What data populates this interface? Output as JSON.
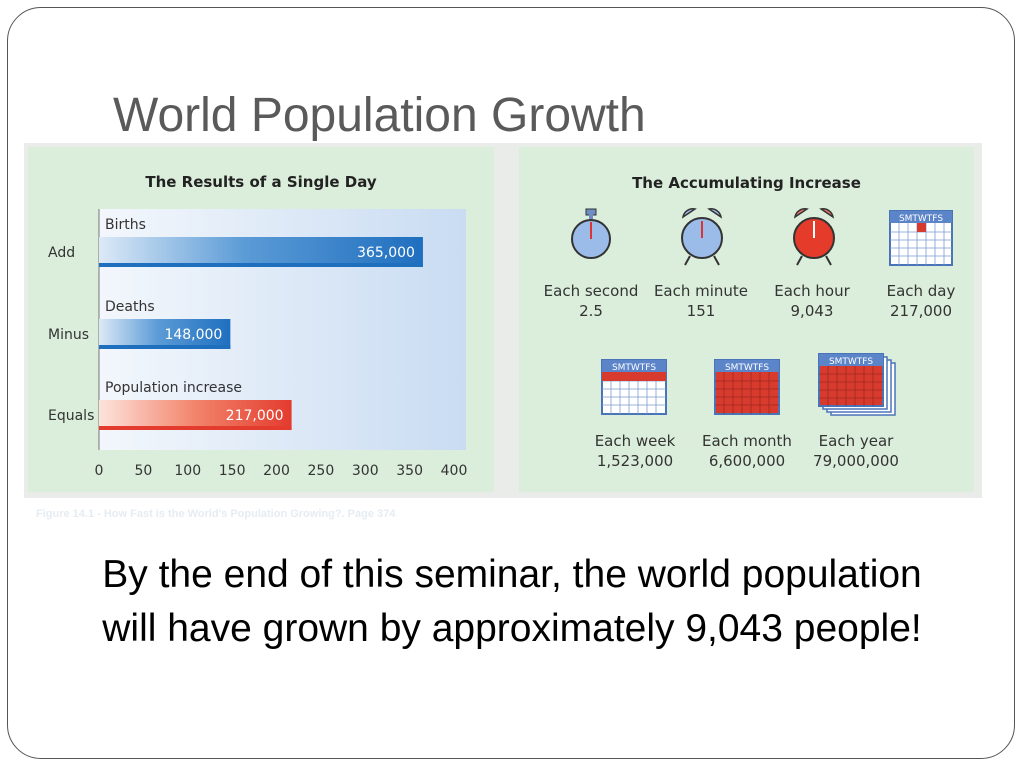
{
  "slide": {
    "title": "World Population Growth"
  },
  "left_chart": {
    "title": "The Results of a Single Day"
  },
  "right_chart": {
    "title": "The Accumulating Increase",
    "rates": [
      {
        "label": "Each second",
        "value": "2.5"
      },
      {
        "label": "Each minute",
        "value": "151"
      },
      {
        "label": "Each hour",
        "value": "9,043"
      },
      {
        "label": "Each day",
        "value": "217,000"
      },
      {
        "label": "Each week",
        "value": "1,523,000"
      },
      {
        "label": "Each month",
        "value": "6,600,000"
      },
      {
        "label": "Each year",
        "value": "79,000,000"
      }
    ],
    "calendar_header": "SMTWTFS",
    "colors": {
      "clock_blue": "#8fb4e6",
      "clock_red": "#e53b2a",
      "calendar_blue": "#5b84c9",
      "calendar_red": "#d93a2e"
    }
  },
  "caption": "Figure 14.1 - How Fast is the World's Population Growing?. Page 374",
  "body_text": "By the end of this seminar, the world population will have grown by approximately 9,043 people!",
  "chart_data": {
    "type": "bar",
    "orientation": "horizontal",
    "title": "The Results of a Single Day",
    "categories": [
      "Births",
      "Deaths",
      "Population increase"
    ],
    "row_labels": [
      "Add",
      "Minus",
      "Equals"
    ],
    "values": [
      365,
      148,
      217
    ],
    "data_labels": [
      "365,000",
      "148,000",
      "217,000"
    ],
    "xticks": [
      0,
      50,
      100,
      150,
      200,
      250,
      300,
      350,
      400
    ],
    "xlim": [
      0,
      400
    ],
    "colors": [
      "#1f6fbf",
      "#1f6fbf",
      "#e33b2e"
    ],
    "grid": false
  }
}
